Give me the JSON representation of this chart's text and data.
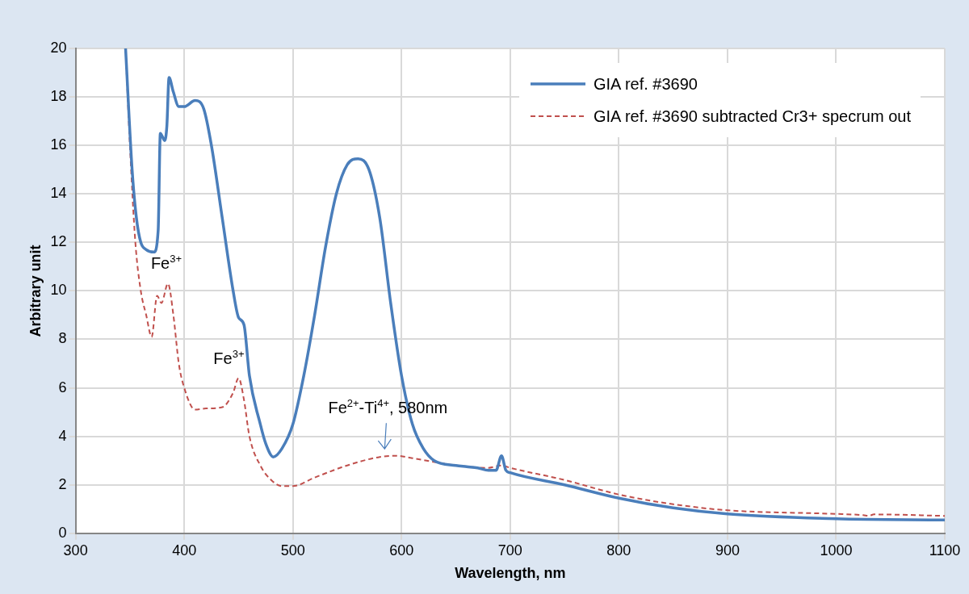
{
  "chart_data": {
    "type": "line",
    "xlabel": "Wavelength, nm",
    "ylabel": "Arbitrary unit",
    "xlim": [
      300,
      1100
    ],
    "xticks": [
      300,
      400,
      500,
      600,
      700,
      800,
      900,
      1000,
      1100
    ],
    "ylim": [
      0,
      20
    ],
    "yticks": [
      0,
      2,
      4,
      6,
      8,
      10,
      12,
      14,
      16,
      18,
      20
    ],
    "grid": true,
    "legend": "top right",
    "marker": "none",
    "series": [
      {
        "name": "GIA ref. #3690",
        "color": "#4a7ebb",
        "line_style": "solid",
        "x": [
          346,
          352,
          356,
          360,
          365,
          372,
          376,
          378,
          382,
          384,
          386,
          390,
          395,
          400,
          410,
          418,
          425,
          435,
          445,
          450,
          455,
          460,
          470,
          475,
          482,
          490,
          500,
          510,
          520,
          530,
          540,
          550,
          560,
          570,
          580,
          590,
          600,
          610,
          620,
          630,
          650,
          660,
          670,
          680,
          687,
          692,
          696,
          700,
          750,
          800,
          850,
          900,
          1000,
          1100
        ],
        "values": [
          20,
          15,
          13,
          12,
          11.7,
          11.6,
          12.5,
          16.5,
          16.2,
          16.8,
          18.8,
          18.2,
          17.6,
          17.6,
          17.85,
          17.5,
          16,
          13,
          10,
          8.9,
          8.6,
          6.5,
          4.5,
          3.7,
          3.15,
          3.5,
          4.5,
          6.5,
          9,
          11.8,
          14,
          15.2,
          15.45,
          15,
          13,
          9.5,
          6.5,
          4.5,
          3.5,
          3,
          2.8,
          2.75,
          2.7,
          2.6,
          2.6,
          3.2,
          2.6,
          2.5,
          2,
          1.45,
          1.05,
          0.8,
          0.6,
          0.55
        ]
      },
      {
        "name": "GIA ref. #3690 subtracted Cr3+ specrum out",
        "color": "#c0504d",
        "line_style": "dashed",
        "x": [
          346,
          350,
          355,
          360,
          365,
          370,
          375,
          379,
          385,
          390,
          395,
          400,
          410,
          420,
          435,
          445,
          450,
          455,
          460,
          470,
          480,
          490,
          500,
          520,
          550,
          580,
          595,
          610,
          650,
          680,
          692,
          700,
          750,
          800,
          850,
          900,
          1000,
          1025,
          1030,
          1035,
          1100
        ],
        "values": [
          20,
          16,
          12,
          10,
          9,
          8.1,
          9.8,
          9.5,
          10.3,
          9,
          7,
          6,
          5.1,
          5.15,
          5.2,
          5.8,
          6.4,
          5.5,
          4,
          2.8,
          2.2,
          1.95,
          1.95,
          2.3,
          2.8,
          3.15,
          3.2,
          3.1,
          2.8,
          2.7,
          2.8,
          2.7,
          2.2,
          1.6,
          1.2,
          0.95,
          0.8,
          0.75,
          0.72,
          0.78,
          0.72
        ]
      }
    ],
    "annotations": [
      {
        "text": "Fe$^{3+}$",
        "x": 385,
        "y": 10.3
      },
      {
        "text": "Fe$^{3+}$",
        "x": 450,
        "y": 6.4
      },
      {
        "text": "Fe$^{2+}$-Ti$^{4+}$, 580nm",
        "x": 580,
        "y": 3.15
      }
    ]
  }
}
